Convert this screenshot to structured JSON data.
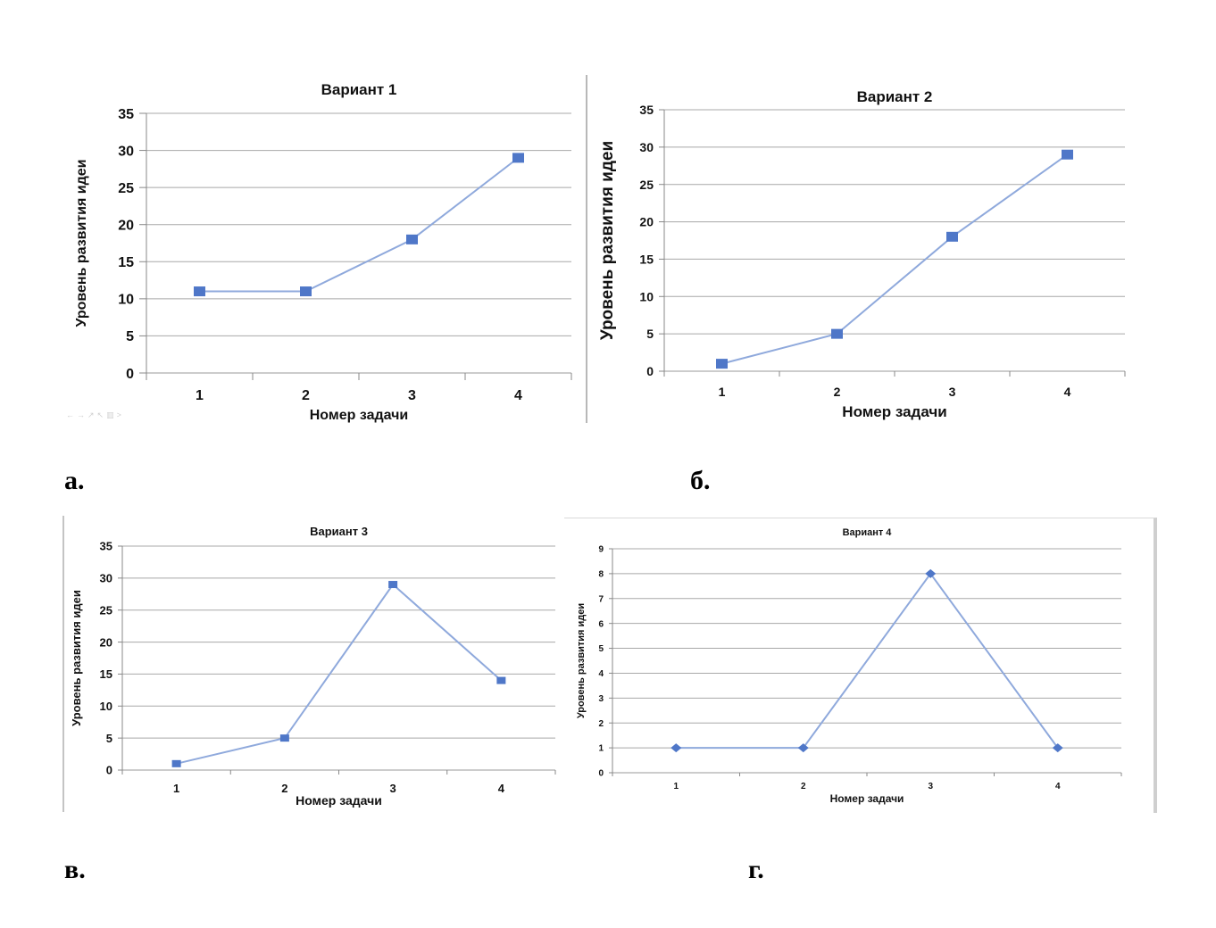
{
  "chart_data": [
    {
      "type": "line",
      "title": "Вариант 1",
      "xlabel": "Номер задачи",
      "ylabel": "Уровень развития идеи",
      "categories": [
        "1",
        "2",
        "3",
        "4"
      ],
      "ylim": [
        0,
        35
      ],
      "yticks": [
        0,
        5,
        10,
        15,
        20,
        25,
        30,
        35
      ],
      "series": [
        {
          "values": [
            11,
            11,
            18,
            29
          ],
          "marker": "square"
        }
      ],
      "grid": true,
      "color": "#4f77c8",
      "line_color": "#8fa9dc"
    },
    {
      "type": "line",
      "title": "Вариант 2",
      "xlabel": "Номер задачи",
      "ylabel": "Уровень развития идеи",
      "categories": [
        "1",
        "2",
        "3",
        "4"
      ],
      "ylim": [
        0,
        35
      ],
      "yticks": [
        0,
        5,
        10,
        15,
        20,
        25,
        30,
        35
      ],
      "series": [
        {
          "values": [
            1,
            5,
            18,
            29
          ],
          "marker": "square"
        }
      ],
      "grid": true,
      "color": "#4f77c8",
      "line_color": "#8fa9dc"
    },
    {
      "type": "line",
      "title": "Вариант 3",
      "xlabel": "Номер задачи",
      "ylabel": "Уровень развития идеи",
      "categories": [
        "1",
        "2",
        "3",
        "4"
      ],
      "ylim": [
        0,
        35
      ],
      "yticks": [
        0,
        5,
        10,
        15,
        20,
        25,
        30,
        35
      ],
      "series": [
        {
          "values": [
            1,
            5,
            29,
            14
          ],
          "marker": "square"
        }
      ],
      "grid": true,
      "color": "#4f77c8",
      "line_color": "#8fa9dc"
    },
    {
      "type": "line",
      "title": "Вариант 4",
      "xlabel": "Номер задачи",
      "ylabel": "Уровень развития идеи",
      "categories": [
        "1",
        "2",
        "3",
        "4"
      ],
      "ylim": [
        0,
        9
      ],
      "yticks": [
        0,
        1,
        2,
        3,
        4,
        5,
        6,
        7,
        8,
        9
      ],
      "series": [
        {
          "values": [
            1,
            1,
            8,
            1
          ],
          "marker": "diamond"
        }
      ],
      "grid": true,
      "color": "#4f77c8",
      "line_color": "#8fa9dc"
    }
  ],
  "captions": [
    "а.",
    "б.",
    "в.",
    "г."
  ]
}
